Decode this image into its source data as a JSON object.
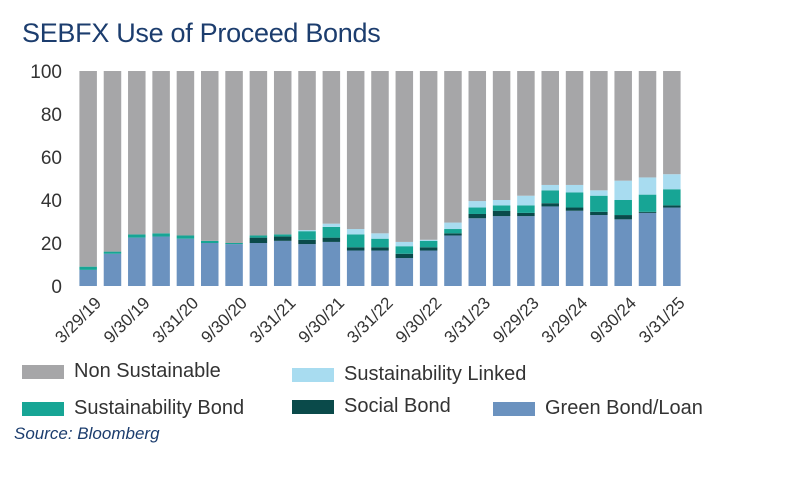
{
  "chart_data": {
    "type": "bar",
    "stacked": true,
    "title": "SEBFX Use of Proceed Bonds",
    "xlabel": "",
    "ylabel": "",
    "ylim": [
      0,
      100
    ],
    "yticks": [
      "0",
      "20",
      "40",
      "60",
      "80",
      "100"
    ],
    "x_tick_labels": [
      "3/29/19",
      "9/30/19",
      "3/31/20",
      "9/30/20",
      "3/31/21",
      "9/30/21",
      "3/31/22",
      "9/30/22",
      "3/31/23",
      "9/29/23",
      "3/29/24",
      "9/30/24",
      "3/31/25"
    ],
    "categories": [
      "3/29/19",
      "6/28/19",
      "9/30/19",
      "12/31/19",
      "3/31/20",
      "6/30/20",
      "9/30/20",
      "12/31/20",
      "3/31/21",
      "6/30/21",
      "9/30/21",
      "12/31/21",
      "3/31/22",
      "6/30/22",
      "9/30/22",
      "12/30/22",
      "3/31/23",
      "6/30/23",
      "9/29/23",
      "12/29/23",
      "3/29/24",
      "6/28/24",
      "9/30/24",
      "12/31/24",
      "3/31/25"
    ],
    "series": [
      {
        "name": "Green Bond/Loan",
        "color": "#6b92bf",
        "values": [
          7.5,
          15,
          22.5,
          23,
          22,
          20,
          19.5,
          20,
          21,
          19.5,
          20.5,
          16.5,
          16.5,
          13,
          16.5,
          23.5,
          31.5,
          32.5,
          32.5,
          37,
          35,
          33,
          31,
          34,
          36.5
        ]
      },
      {
        "name": "Social Bond",
        "color": "#0a4a4a",
        "values": [
          0,
          0,
          0,
          0,
          0,
          0,
          0,
          2.5,
          2,
          2,
          2,
          1.5,
          1.5,
          2,
          1.5,
          1,
          2,
          2.5,
          1.5,
          1.5,
          1.5,
          1.5,
          2,
          0.5,
          1
        ]
      },
      {
        "name": "Sustainability Bond",
        "color": "#17a595",
        "values": [
          1.5,
          1,
          1.5,
          1.5,
          1.5,
          1,
          0.5,
          1,
          1,
          4,
          5,
          6,
          4,
          3.5,
          3,
          2,
          3,
          2.5,
          3.5,
          6,
          7,
          7.5,
          7,
          8,
          7.5
        ]
      },
      {
        "name": "Sustainability Linked",
        "color": "#a8dcf0",
        "values": [
          0,
          0,
          0,
          0,
          0,
          0,
          0,
          0,
          0,
          0.5,
          1.5,
          2.5,
          2.5,
          2,
          0.5,
          3,
          3,
          2.5,
          4.5,
          2.5,
          3.5,
          2.5,
          9,
          8,
          7
        ]
      },
      {
        "name": "Non Sustainable",
        "color": "#a6a6a8",
        "values": [
          91,
          84,
          76,
          75.5,
          76.5,
          79,
          80,
          76.5,
          76,
          74,
          71,
          73.5,
          75.5,
          79.5,
          78.5,
          70.5,
          60.5,
          60,
          58,
          53,
          53,
          55.5,
          51,
          49.5,
          48
        ]
      }
    ],
    "legend": {
      "placement": "bottom",
      "entries": [
        "Non Sustainable",
        "Sustainability Linked",
        "Sustainability Bond",
        "Social Bond",
        "Green Bond/Loan"
      ]
    },
    "source": "Source: Bloomberg",
    "grid": false
  }
}
